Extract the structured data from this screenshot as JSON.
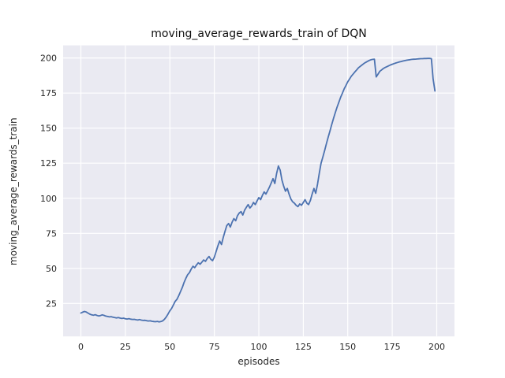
{
  "chart_data": {
    "type": "line",
    "title": "moving_average_rewards_train of DQN",
    "xlabel": "episodes",
    "ylabel": "moving_average_rewards_train",
    "legend": "none",
    "grid": true,
    "style": "seaborn-darkgrid",
    "line_color": "#4c72b0",
    "plot_bg": "#eaeaf2",
    "grid_color": "#ffffff",
    "tick_color": "#262626",
    "xticks": [
      0,
      25,
      50,
      75,
      100,
      125,
      150,
      175,
      200
    ],
    "yticks": [
      25,
      50,
      75,
      100,
      125,
      150,
      175,
      200
    ],
    "xlim": [
      -10,
      210
    ],
    "ylim": [
      1.5,
      209
    ],
    "x_start": 0,
    "x_step": 1,
    "values": [
      18.2,
      18.8,
      19.3,
      18.9,
      18.1,
      17.4,
      16.9,
      16.6,
      17.0,
      16.5,
      16.1,
      16.4,
      16.9,
      16.5,
      16.0,
      15.7,
      15.4,
      15.6,
      15.2,
      14.9,
      14.7,
      15.0,
      14.6,
      14.3,
      14.5,
      14.1,
      13.9,
      14.2,
      13.8,
      13.6,
      13.7,
      13.4,
      13.2,
      13.5,
      13.1,
      12.9,
      13.0,
      12.7,
      12.5,
      12.6,
      12.3,
      12.1,
      12.0,
      12.2,
      11.9,
      12.1,
      12.6,
      13.8,
      15.5,
      17.5,
      19.8,
      21.5,
      24.0,
      26.5,
      28.0,
      30.5,
      33.5,
      36.5,
      40.0,
      43.0,
      45.5,
      47.0,
      49.5,
      51.5,
      50.5,
      52.5,
      54.0,
      53.0,
      54.5,
      56.0,
      55.0,
      57.0,
      58.5,
      56.5,
      55.5,
      58.0,
      62.0,
      66.0,
      69.5,
      67.0,
      72.0,
      76.5,
      80.5,
      82.0,
      79.5,
      83.0,
      85.5,
      84.0,
      87.5,
      89.5,
      90.5,
      88.0,
      91.5,
      93.5,
      95.5,
      93.0,
      94.5,
      97.0,
      95.5,
      98.0,
      100.5,
      99.0,
      102.0,
      104.5,
      103.0,
      105.5,
      108.0,
      111.0,
      114.0,
      110.5,
      117.5,
      123.0,
      120.0,
      113.0,
      108.5,
      105.0,
      107.0,
      103.0,
      99.5,
      97.5,
      96.5,
      95.0,
      94.0,
      96.0,
      95.0,
      97.0,
      99.0,
      96.5,
      95.5,
      98.5,
      103.0,
      107.0,
      103.5,
      110.0,
      118.0,
      125.0,
      129.5,
      134.0,
      139.0,
      143.5,
      148.0,
      152.5,
      157.0,
      161.0,
      165.0,
      168.5,
      172.0,
      175.0,
      178.0,
      180.5,
      183.0,
      185.0,
      187.0,
      188.5,
      190.0,
      191.5,
      193.0,
      194.0,
      195.0,
      196.0,
      196.8,
      197.5,
      198.2,
      198.7,
      199.0,
      199.2,
      186.5,
      188.5,
      190.5,
      191.5,
      192.5,
      193.2,
      193.8,
      194.4,
      195.0,
      195.5,
      196.0,
      196.4,
      196.8,
      197.2,
      197.5,
      197.8,
      198.1,
      198.4,
      198.6,
      198.8,
      199.0,
      199.1,
      199.2,
      199.3,
      199.4,
      199.5,
      199.5,
      199.6,
      199.6,
      199.7,
      199.7,
      199.5,
      185.0,
      176.5
    ]
  }
}
